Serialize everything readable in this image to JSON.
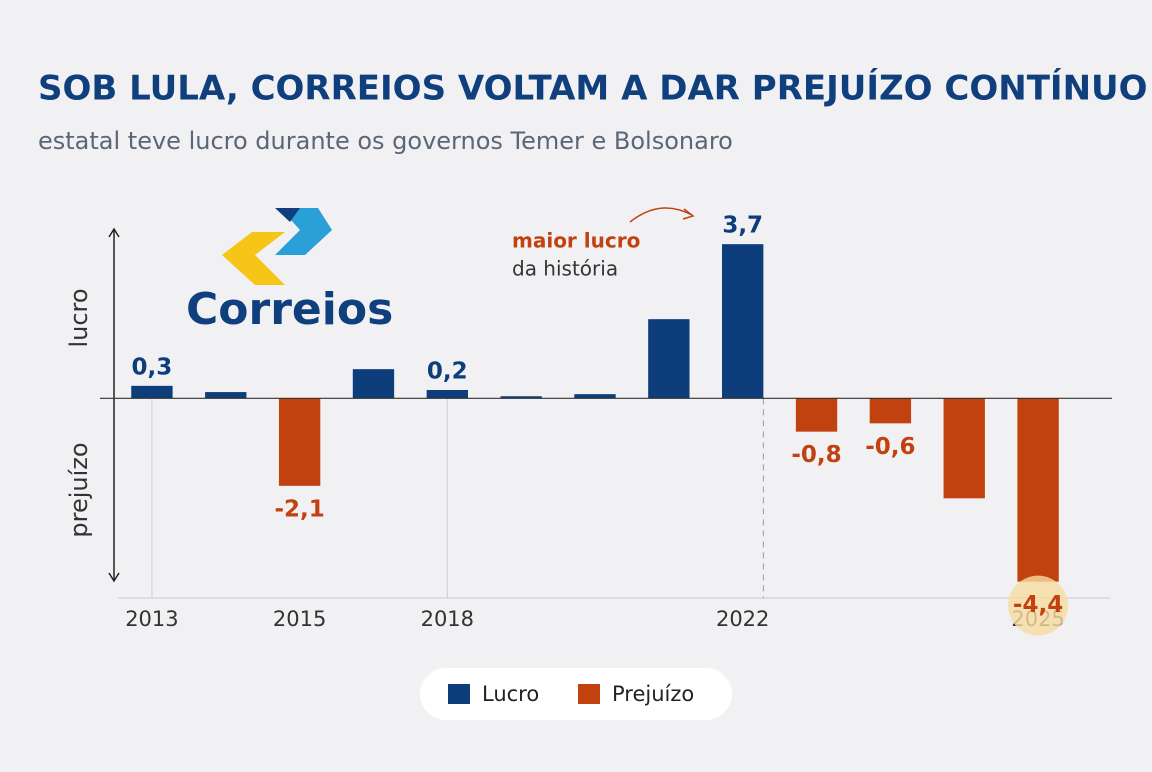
{
  "chart_data": {
    "type": "bar",
    "title": "SOB LULA, CORREIOS VOLTAM A DAR PREJUÍZO CONTÍNUO",
    "subtitle": "estatal teve lucro durante os governos Temer e Bolsonaro",
    "logo_text": "Correios",
    "y_axis_labels": [
      "lucro",
      "prejuízo"
    ],
    "annotation": [
      "maior lucro",
      "da história"
    ],
    "categories": [
      "2013",
      null,
      "2015",
      null,
      "2018",
      null,
      null,
      null,
      "2022",
      null,
      null,
      null,
      "2025"
    ],
    "values": [
      0.3,
      0.15,
      -2.1,
      0.7,
      0.2,
      0.05,
      0.1,
      1.9,
      3.7,
      -0.8,
      -0.6,
      -2.4,
      -4.4
    ],
    "value_labels": [
      "0,3",
      null,
      "-2,1",
      null,
      "0,2",
      null,
      null,
      null,
      "3,7",
      "-0,8",
      "-0,6",
      null,
      "-4,4"
    ],
    "legend": [
      {
        "name": "Lucro",
        "color": "#0d3d7a"
      },
      {
        "name": "Prejuízo",
        "color": "#c1410f"
      }
    ],
    "ylim": [
      -4.6,
      4.4
    ]
  }
}
